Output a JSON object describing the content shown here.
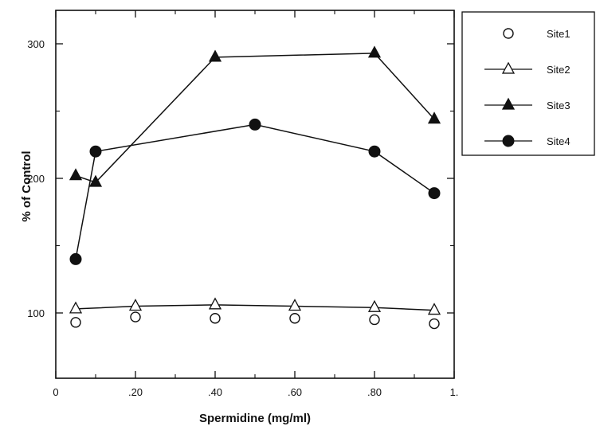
{
  "chart_data": {
    "type": "line",
    "title": "",
    "xlabel": "Spermidine (mg/ml)",
    "ylabel": "% of Control",
    "xlim": [
      0,
      1.0
    ],
    "ylim": [
      50,
      320
    ],
    "x_ticks": [
      0,
      0.2,
      0.4,
      0.6,
      0.8,
      1.0
    ],
    "x_tick_labels": [
      "0",
      ".20",
      ".40",
      ".60",
      ".80",
      "1."
    ],
    "y_ticks": [
      100,
      200,
      300
    ],
    "y_tick_labels": [
      "100",
      "200",
      "300"
    ],
    "grid": false,
    "legend_position": "top-right-outside",
    "series": [
      {
        "name": "Site1",
        "marker": "circle-open",
        "line": false,
        "x": [
          0.05,
          0.2,
          0.4,
          0.6,
          0.8,
          0.95
        ],
        "y": [
          93,
          97,
          96,
          96,
          95,
          92
        ]
      },
      {
        "name": "Site2",
        "marker": "triangle-open",
        "line": true,
        "x": [
          0.05,
          0.2,
          0.4,
          0.6,
          0.8,
          0.95
        ],
        "y": [
          103,
          105,
          106,
          105,
          104,
          102
        ]
      },
      {
        "name": "Site3",
        "marker": "triangle-filled",
        "line": true,
        "x": [
          0.05,
          0.1,
          0.4,
          0.8,
          0.95
        ],
        "y": [
          202,
          197,
          290,
          293,
          244
        ]
      },
      {
        "name": "Site4",
        "marker": "circle-filled",
        "line": true,
        "x": [
          0.05,
          0.1,
          0.5,
          0.8,
          0.95
        ],
        "y": [
          140,
          220,
          240,
          220,
          189
        ]
      }
    ]
  }
}
